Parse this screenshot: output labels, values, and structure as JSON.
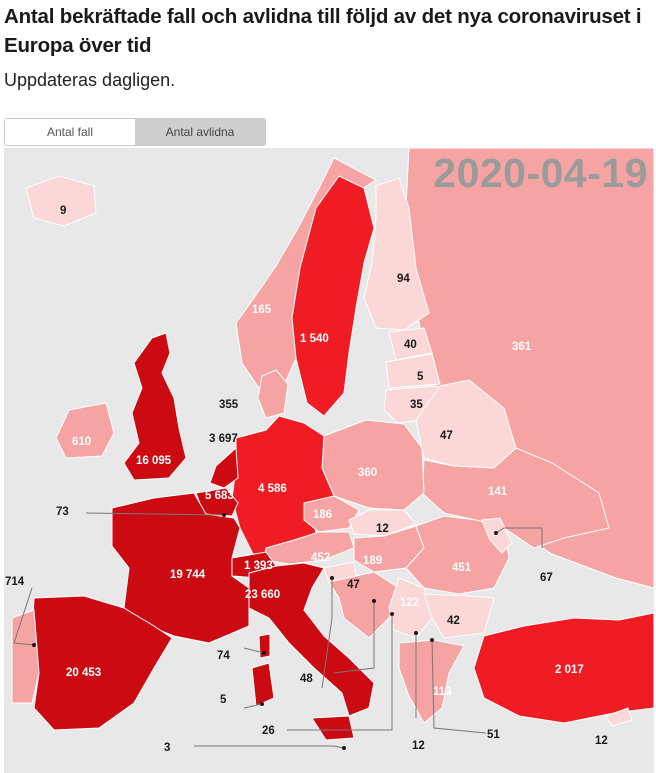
{
  "header": {
    "title": "Antal bekräftade fall och avlidna till följd av det nya coronaviruset i Europa över tid",
    "subtitle": "Uppdateras dagligen."
  },
  "tabs": [
    {
      "label": "Antal fall",
      "active": true
    },
    {
      "label": "Antal avlidna",
      "active": false
    }
  ],
  "map": {
    "date": "2020-04-19",
    "colors": {
      "sea": "#e8e8e8",
      "level_low": "#fbd7d7",
      "level_mid": "#f5a3a3",
      "level_high": "#ef1c24",
      "level_max": "#cc0a12"
    },
    "labels": {
      "iceland": "9",
      "norway": "165",
      "sweden": "1 540",
      "finland": "94",
      "russia": "361",
      "estonia": "40",
      "latvia": "5",
      "lithuania": "35",
      "belarus": "47",
      "denmark": "355",
      "netherlands": "3 697",
      "ireland": "610",
      "uk": "16 095",
      "belgium": "5 683",
      "germany": "4 586",
      "poland": "360",
      "ukraine": "141",
      "luxembourg": "73",
      "czechia": "186",
      "slovakia": "12",
      "moldova": "67",
      "austria": "452",
      "hungary": "189",
      "romania": "451",
      "switzerland": "1 393",
      "france": "19 744",
      "italy": "23 660",
      "slovenia": "47",
      "croatia": "122",
      "bulgaria": "42",
      "portugal": "714",
      "spain": "20 453",
      "monaco": "74",
      "andorra": "5",
      "san_marino": "48",
      "malta": "3",
      "bosnia": "26",
      "montenegro": "12",
      "north_macedonia": "51",
      "greece": "113",
      "turkey": "2 017",
      "cyprus": "12"
    }
  }
}
